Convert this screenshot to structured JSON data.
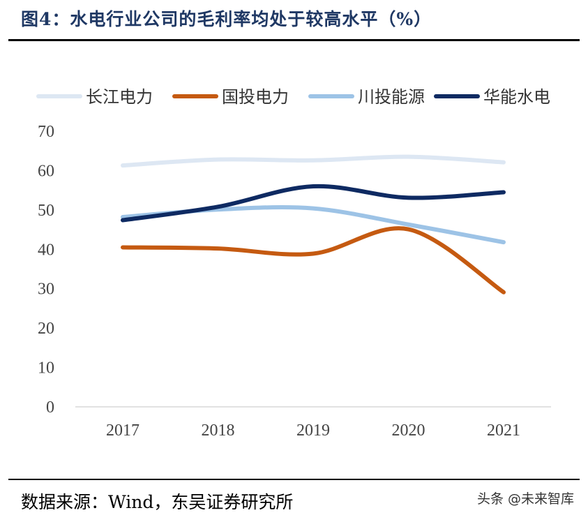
{
  "title": "图4：水电行业公司的毛利率均处于较高水平（%）",
  "source": "数据来源：Wind，东吴证券研究所",
  "watermark": "头条 @未来智库",
  "chart_data": {
    "type": "line",
    "title": "图4：水电行业公司的毛利率均处于较高水平（%）",
    "categories": [
      "2017",
      "2018",
      "2019",
      "2020",
      "2021"
    ],
    "ylim": [
      0,
      70
    ],
    "yticks": [
      0,
      10,
      20,
      30,
      40,
      50,
      60,
      70
    ],
    "grid": false,
    "smooth": true,
    "legend_position": "top",
    "series": [
      {
        "name": "长江电力",
        "color": "#dde7f3",
        "values": [
          61.3,
          62.8,
          62.6,
          63.5,
          62.1
        ]
      },
      {
        "name": "国投电力",
        "color": "#c55a11",
        "values": [
          40.5,
          40.2,
          38.9,
          45.1,
          29.1
        ]
      },
      {
        "name": "川投能源",
        "color": "#9dc3e6",
        "values": [
          48.2,
          50.1,
          50.4,
          46.3,
          41.8
        ]
      },
      {
        "name": "华能水电",
        "color": "#0e2a62",
        "values": [
          47.4,
          50.8,
          56.0,
          53.1,
          54.5
        ]
      }
    ]
  }
}
